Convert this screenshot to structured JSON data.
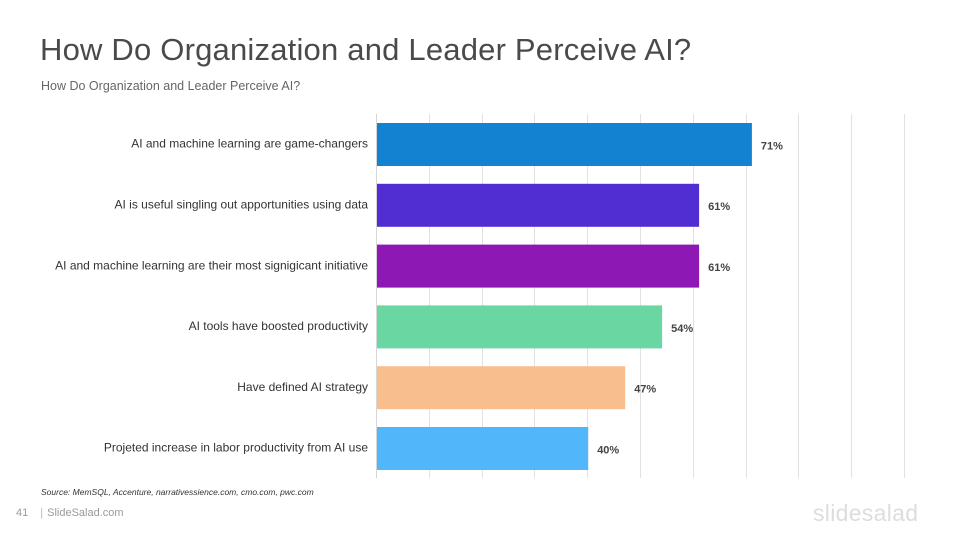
{
  "slide": {
    "title": "How Do Organization and Leader Perceive AI?",
    "subtitle": "How Do Organization  and Leader Perceive AI?",
    "source": "Source: MemSQL,  Accenture, narrativessience.com,   cmo.com, pwc.com",
    "page_number": "41",
    "footer_separator": "|",
    "footer_brand": "SlideSalad.com",
    "logo_text": "slidesalad"
  },
  "chart_data": {
    "type": "bar",
    "orientation": "horizontal",
    "categories": [
      "AI and machine learning are game-changers",
      "AI is useful singling out apportunities using data",
      "AI and machine learning are their most signigicant initiative",
      "AI tools have boosted productivity",
      "Have defined AI strategy",
      "Projeted increase in labor productivity from AI use"
    ],
    "values": [
      71,
      61,
      61,
      54,
      47,
      40
    ],
    "value_labels": [
      "71%",
      "61%",
      "61%",
      "54%",
      "47%",
      "40%"
    ],
    "colors": [
      "#1282d1",
      "#512ed2",
      "#8d18b3",
      "#6ad7a3",
      "#f8be8d",
      "#52b6fb"
    ],
    "xlim": [
      0,
      100
    ],
    "grid": true,
    "axis_labels_shown": false,
    "legend": "none"
  }
}
